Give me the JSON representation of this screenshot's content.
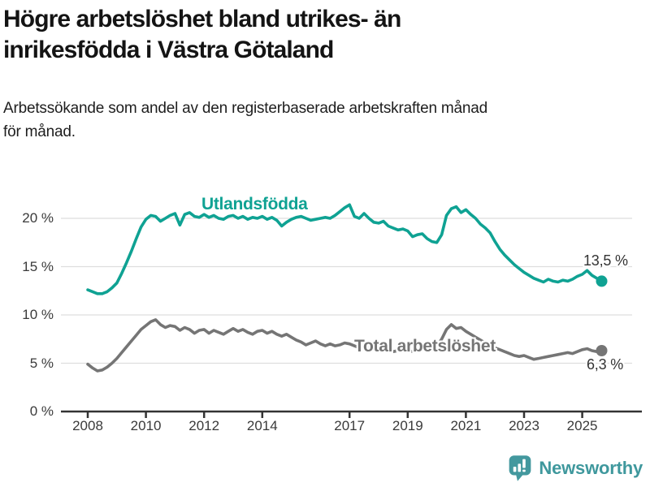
{
  "header": {
    "title_lines": [
      "Högre arbetslöshet bland utrikes- än",
      "inrikesfödda i Västra Götaland"
    ],
    "subtitle_lines": [
      "Arbetssökande som andel av den registerbaserade arbetskraften månad",
      "för månad."
    ]
  },
  "footer": {
    "brand": "Newsworthy",
    "brand_color": "#3f989d",
    "logo_icon": "bar-chart-speech-bubble-icon"
  },
  "chart_data": {
    "type": "line",
    "unit": "%",
    "x_start": "2008-01",
    "x_step_months": 2,
    "x_end": "2025-09",
    "grid": "horizontal",
    "ylim": [
      0,
      22.5
    ],
    "yticks": [
      0,
      5,
      10,
      15,
      20
    ],
    "ytick_labels": [
      "0 %",
      "5 %",
      "10 %",
      "15 %",
      "20 %"
    ],
    "xticks": [
      2008,
      2010,
      2012,
      2014,
      2017,
      2019,
      2021,
      2023,
      2025
    ],
    "xtick_labels": [
      "2008",
      "2010",
      "2012",
      "2014",
      "2017",
      "2019",
      "2021",
      "2023",
      "2025"
    ],
    "axis_color": "#333333",
    "gridline_color": "#dedede",
    "series": [
      {
        "name": "Utlandsfödda",
        "color": "#0fa293",
        "end_label": "13,5 %",
        "end_value": 13.5,
        "values": [
          12.6,
          12.4,
          12.2,
          12.2,
          12.4,
          12.8,
          13.3,
          14.3,
          15.4,
          16.6,
          17.9,
          19.1,
          19.9,
          20.3,
          20.2,
          19.7,
          20.0,
          20.3,
          20.5,
          19.3,
          20.4,
          20.6,
          20.2,
          20.1,
          20.4,
          20.1,
          20.3,
          20.0,
          19.9,
          20.2,
          20.3,
          20.0,
          20.2,
          19.9,
          20.1,
          20.0,
          20.2,
          19.9,
          20.1,
          19.8,
          19.2,
          19.6,
          19.9,
          20.1,
          20.2,
          20.0,
          19.8,
          19.9,
          20.0,
          20.1,
          20.0,
          20.3,
          20.7,
          21.1,
          21.4,
          20.2,
          20.0,
          20.5,
          20.0,
          19.6,
          19.5,
          19.7,
          19.2,
          19.0,
          18.8,
          18.9,
          18.7,
          18.1,
          18.3,
          18.4,
          17.9,
          17.6,
          17.5,
          18.3,
          20.3,
          21.0,
          21.2,
          20.6,
          20.9,
          20.4,
          20.0,
          19.4,
          19.0,
          18.5,
          17.6,
          16.8,
          16.2,
          15.7,
          15.2,
          14.8,
          14.4,
          14.1,
          13.8,
          13.6,
          13.4,
          13.7,
          13.5,
          13.4,
          13.6,
          13.5,
          13.7,
          14.0,
          14.2,
          14.6,
          14.1,
          13.8,
          13.5
        ]
      },
      {
        "name": "Total arbetslöshet",
        "color": "#757575",
        "end_label": "6,3 %",
        "end_value": 6.3,
        "values": [
          4.9,
          4.5,
          4.2,
          4.3,
          4.6,
          5.0,
          5.5,
          6.1,
          6.7,
          7.3,
          7.9,
          8.5,
          8.9,
          9.3,
          9.5,
          9.0,
          8.7,
          8.9,
          8.8,
          8.4,
          8.7,
          8.5,
          8.1,
          8.4,
          8.5,
          8.1,
          8.4,
          8.2,
          8.0,
          8.3,
          8.6,
          8.3,
          8.5,
          8.2,
          8.0,
          8.3,
          8.4,
          8.1,
          8.3,
          8.0,
          7.8,
          8.0,
          7.7,
          7.4,
          7.2,
          6.9,
          7.1,
          7.3,
          7.0,
          6.8,
          7.0,
          6.8,
          6.9,
          7.1,
          7.0,
          6.8,
          6.6,
          6.7,
          6.6,
          6.7,
          6.6,
          6.4,
          6.3,
          6.2,
          6.3,
          6.4,
          6.3,
          6.2,
          6.3,
          6.4,
          6.5,
          6.6,
          6.8,
          7.5,
          8.5,
          9.0,
          8.6,
          8.7,
          8.3,
          8.0,
          7.7,
          7.4,
          7.1,
          6.9,
          6.6,
          6.4,
          6.2,
          6.0,
          5.8,
          5.7,
          5.8,
          5.6,
          5.4,
          5.5,
          5.6,
          5.7,
          5.8,
          5.9,
          6.0,
          6.1,
          6.0,
          6.2,
          6.4,
          6.5,
          6.3,
          6.2,
          6.3
        ]
      }
    ]
  }
}
